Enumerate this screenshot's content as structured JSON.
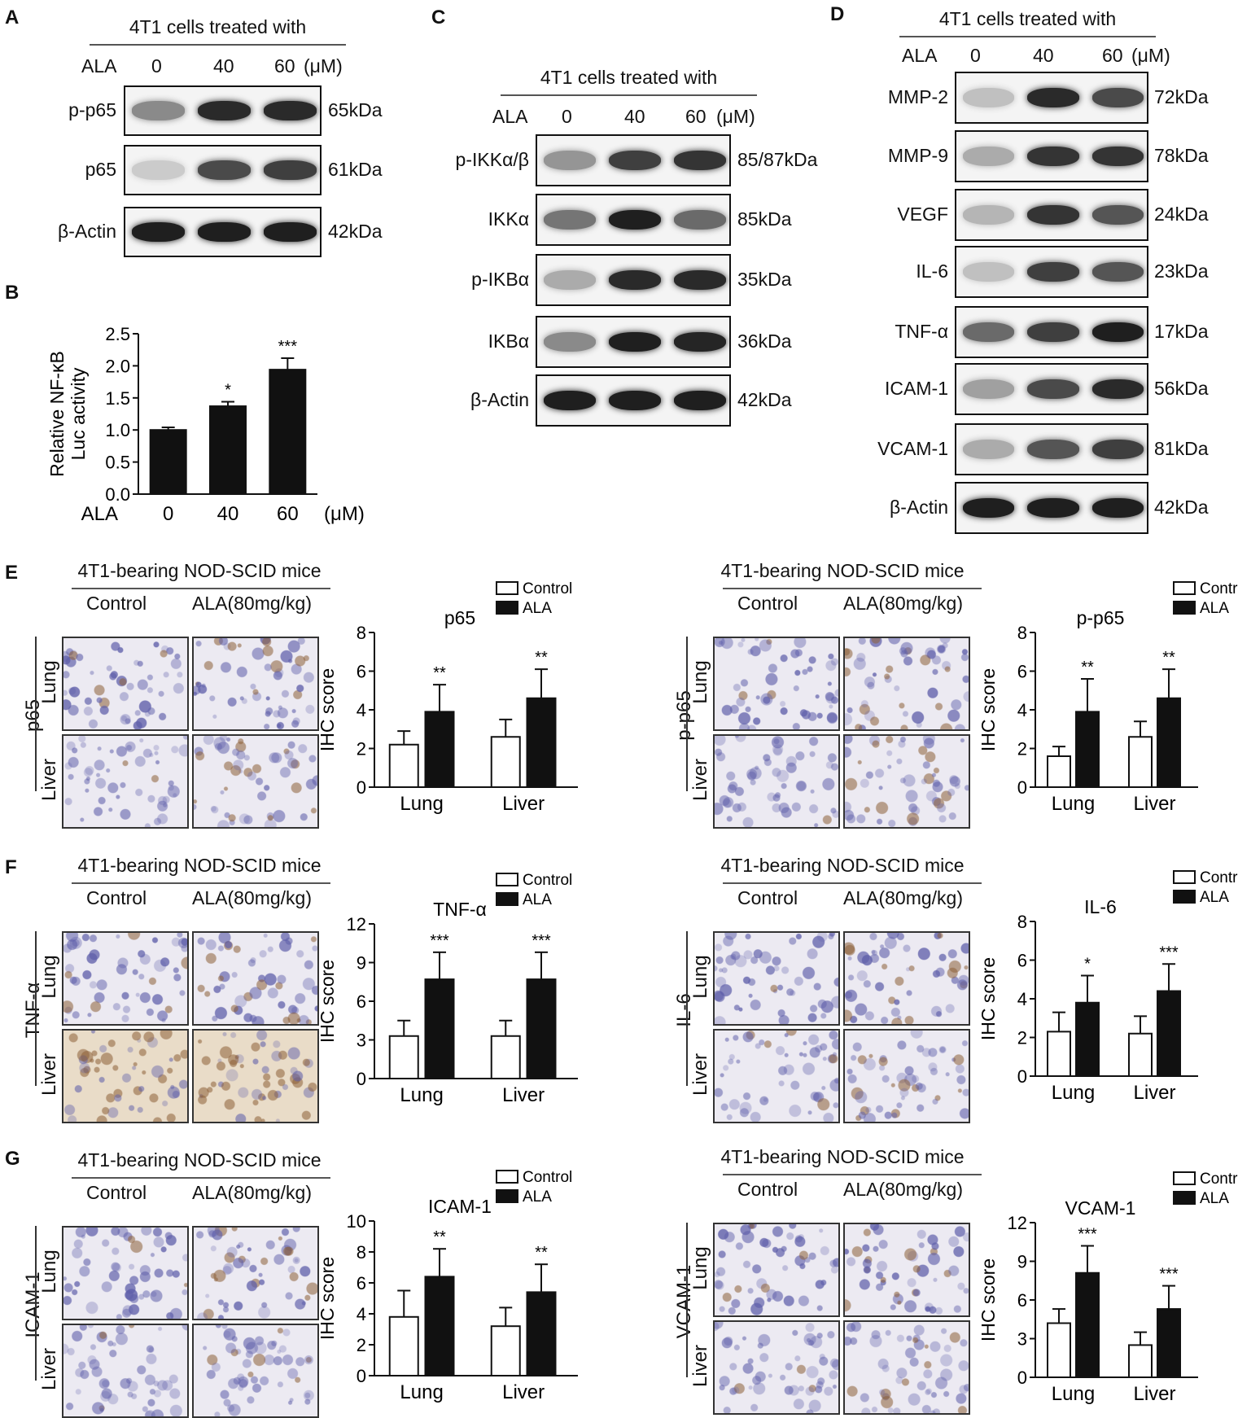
{
  "panels": {
    "A": {
      "letter": "A",
      "title": "4T1 cells treated with",
      "dose_label": "ALA",
      "doses": [
        "0",
        "40",
        "60"
      ],
      "unit": "(μM)",
      "rows": [
        {
          "name": "p-p65",
          "kda": "65kDa"
        },
        {
          "name": "p65",
          "kda": "61kDa"
        },
        {
          "name": "β-Actin",
          "kda": "42kDa"
        }
      ]
    },
    "B": {
      "letter": "B"
    },
    "C": {
      "letter": "C",
      "title": "4T1 cells treated with",
      "dose_label": "ALA",
      "doses": [
        "0",
        "40",
        "60"
      ],
      "unit": "(μM)",
      "rows": [
        {
          "name": "p-IKKα/β",
          "kda": "85/87kDa"
        },
        {
          "name": "IKKα",
          "kda": "85kDa"
        },
        {
          "name": "p-IKBα",
          "kda": "35kDa"
        },
        {
          "name": "IKBα",
          "kda": "36kDa"
        },
        {
          "name": "β-Actin",
          "kda": "42kDa"
        }
      ]
    },
    "D": {
      "letter": "D",
      "title": "4T1 cells treated with",
      "dose_label": "ALA",
      "doses": [
        "0",
        "40",
        "60"
      ],
      "unit": "(μM)",
      "rows": [
        {
          "name": "MMP-2",
          "kda": "72kDa"
        },
        {
          "name": "MMP-9",
          "kda": "78kDa"
        },
        {
          "name": "VEGF",
          "kda": "24kDa"
        },
        {
          "name": "IL-6",
          "kda": "23kDa"
        },
        {
          "name": "TNF-α",
          "kda": "17kDa"
        },
        {
          "name": "ICAM-1",
          "kda": "56kDa"
        },
        {
          "name": "VCAM-1",
          "kda": "81kDa"
        },
        {
          "name": "β-Actin",
          "kda": "42kDa"
        }
      ]
    },
    "E": {
      "letter": "E"
    },
    "F": {
      "letter": "F"
    },
    "G": {
      "letter": "G"
    }
  },
  "ihc_blocks": [
    {
      "id": "E-left",
      "title": "4T1-bearing NOD-SCID mice",
      "col_labels": [
        "Control",
        "ALA(80mg/kg)"
      ],
      "marker": "p65",
      "tissues": [
        "Lung",
        "Liver"
      ]
    },
    {
      "id": "E-right",
      "title": "4T1-bearing NOD-SCID mice",
      "col_labels": [
        "Control",
        "ALA(80mg/kg)"
      ],
      "marker": "p-p65",
      "tissues": [
        "Lung",
        "Liver"
      ]
    },
    {
      "id": "F-left",
      "title": "4T1-bearing NOD-SCID mice",
      "col_labels": [
        "Control",
        "ALA(80mg/kg)"
      ],
      "marker": "TNF-α",
      "tissues": [
        "Lung",
        "Liver"
      ]
    },
    {
      "id": "F-right",
      "title": "4T1-bearing NOD-SCID mice",
      "col_labels": [
        "Control",
        "ALA(80mg/kg)"
      ],
      "marker": "IL-6",
      "tissues": [
        "Lung",
        "Liver"
      ]
    },
    {
      "id": "G-left",
      "title": "4T1-bearing NOD-SCID mice",
      "col_labels": [
        "Control",
        "ALA(80mg/kg)"
      ],
      "marker": "ICAM-1",
      "tissues": [
        "Lung",
        "Liver"
      ]
    },
    {
      "id": "G-right",
      "title": "4T1-bearing NOD-SCID mice",
      "col_labels": [
        "Control",
        "ALA(80mg/kg)"
      ],
      "marker": "VCAM-1",
      "tissues": [
        "Lung",
        "Liver"
      ]
    }
  ],
  "chart_data": [
    {
      "id": "B",
      "type": "bar",
      "title": "",
      "ylabel": "Relative NF-κB Luc activity",
      "xlabel": "",
      "x_prefix": "ALA",
      "x_unit": "(μM)",
      "categories": [
        "0",
        "40",
        "60"
      ],
      "values": [
        1.0,
        1.37,
        1.94
      ],
      "errors": [
        0.04,
        0.07,
        0.18
      ],
      "significance": [
        "",
        "*",
        "***"
      ],
      "ylim": [
        0,
        2.5
      ],
      "yticks": [
        "0.0",
        "0.5",
        "1.0",
        "1.5",
        "2.0",
        "2.5"
      ],
      "yticks_values": [
        0,
        0.5,
        1.0,
        1.5,
        2.0,
        2.5
      ]
    },
    {
      "id": "E-left",
      "type": "bar",
      "title": "p65",
      "ylabel": "IHC score",
      "categories": [
        "Lung",
        "Liver"
      ],
      "series": [
        {
          "name": "Control",
          "values": [
            2.2,
            2.6
          ],
          "errors": [
            0.7,
            0.9
          ]
        },
        {
          "name": "ALA",
          "values": [
            3.9,
            4.6
          ],
          "errors": [
            1.4,
            1.5
          ]
        }
      ],
      "significance": [
        "**",
        "**"
      ],
      "ylim": [
        0,
        8
      ],
      "yticks": [
        "0",
        "2",
        "4",
        "6",
        "8"
      ],
      "yticks_values": [
        0,
        2,
        4,
        6,
        8
      ]
    },
    {
      "id": "E-right",
      "type": "bar",
      "title": "p-p65",
      "ylabel": "IHC score",
      "categories": [
        "Lung",
        "Liver"
      ],
      "series": [
        {
          "name": "Control",
          "values": [
            1.6,
            2.6
          ],
          "errors": [
            0.5,
            0.8
          ]
        },
        {
          "name": "ALA",
          "values": [
            3.9,
            4.6
          ],
          "errors": [
            1.7,
            1.5
          ]
        }
      ],
      "significance": [
        "**",
        "**"
      ],
      "ylim": [
        0,
        8
      ],
      "yticks": [
        "0",
        "2",
        "4",
        "6",
        "8"
      ],
      "yticks_values": [
        0,
        2,
        4,
        6,
        8
      ]
    },
    {
      "id": "F-left",
      "type": "bar",
      "title": "TNF-α",
      "ylabel": "IHC score",
      "categories": [
        "Lung",
        "Liver"
      ],
      "series": [
        {
          "name": "Control",
          "values": [
            3.3,
            3.3
          ],
          "errors": [
            1.2,
            1.2
          ]
        },
        {
          "name": "ALA",
          "values": [
            7.7,
            7.7
          ],
          "errors": [
            2.1,
            2.1
          ]
        }
      ],
      "significance": [
        "***",
        "***"
      ],
      "ylim": [
        0,
        12
      ],
      "yticks": [
        "0",
        "3",
        "6",
        "9",
        "12"
      ],
      "yticks_values": [
        0,
        3,
        6,
        9,
        12
      ]
    },
    {
      "id": "F-right",
      "type": "bar",
      "title": "IL-6",
      "ylabel": "IHC score",
      "categories": [
        "Lung",
        "Liver"
      ],
      "series": [
        {
          "name": "Control",
          "values": [
            2.3,
            2.2
          ],
          "errors": [
            1.0,
            0.9
          ]
        },
        {
          "name": "ALA",
          "values": [
            3.8,
            4.4
          ],
          "errors": [
            1.4,
            1.4
          ]
        }
      ],
      "significance": [
        "*",
        "***"
      ],
      "ylim": [
        0,
        8
      ],
      "yticks": [
        "0",
        "2",
        "4",
        "6",
        "8"
      ],
      "yticks_values": [
        0,
        2,
        4,
        6,
        8
      ]
    },
    {
      "id": "G-left",
      "type": "bar",
      "title": "ICAM-1",
      "ylabel": "IHC score",
      "categories": [
        "Lung",
        "Liver"
      ],
      "series": [
        {
          "name": "Control",
          "values": [
            3.8,
            3.2
          ],
          "errors": [
            1.7,
            1.2
          ]
        },
        {
          "name": "ALA",
          "values": [
            6.4,
            5.4
          ],
          "errors": [
            1.8,
            1.8
          ]
        }
      ],
      "significance": [
        "**",
        "**"
      ],
      "ylim": [
        0,
        10
      ],
      "yticks": [
        "0",
        "2",
        "4",
        "6",
        "8",
        "10"
      ],
      "yticks_values": [
        0,
        2,
        4,
        6,
        8,
        10
      ]
    },
    {
      "id": "G-right",
      "type": "bar",
      "title": "VCAM-1",
      "ylabel": "IHC score",
      "categories": [
        "Lung",
        "Liver"
      ],
      "series": [
        {
          "name": "Control",
          "values": [
            4.2,
            2.5
          ],
          "errors": [
            1.1,
            1.0
          ]
        },
        {
          "name": "ALA",
          "values": [
            8.1,
            5.3
          ],
          "errors": [
            2.1,
            1.8
          ]
        }
      ],
      "significance": [
        "***",
        "***"
      ],
      "ylim": [
        0,
        12
      ],
      "yticks": [
        "0",
        "3",
        "6",
        "9",
        "12"
      ],
      "yticks_values": [
        0,
        3,
        6,
        9,
        12
      ]
    }
  ]
}
